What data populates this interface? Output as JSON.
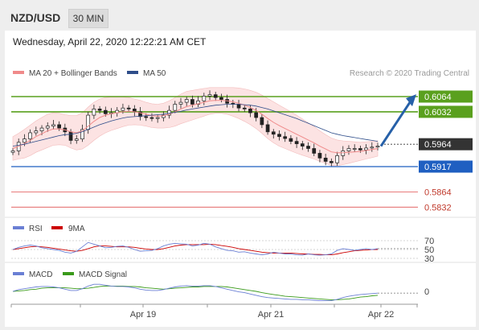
{
  "header": {
    "pair": "NZD/USD",
    "timeframe": "30 MIN",
    "datetime": "Wednesday, April 22, 2020 12:22:21 AM CET"
  },
  "credit": "Research © 2020 Trading Central",
  "legend": {
    "main": [
      {
        "label": "MA 20 + Bollinger Bands",
        "color": "#f08a8a"
      },
      {
        "label": "MA 50",
        "color": "#2e4d8a"
      }
    ],
    "rsi": [
      {
        "label": "RSI",
        "color": "#6a7fd4"
      },
      {
        "label": "9MA",
        "color": "#cc0000"
      }
    ],
    "macd": [
      {
        "label": "MACD",
        "color": "#6a7fd4"
      },
      {
        "label": "MACD Signal",
        "color": "#3a9a1a"
      }
    ]
  },
  "colors": {
    "resistance": "#5aa01e",
    "support": "#1f5fc1",
    "target": "#e05050",
    "price": "#333333",
    "arrow": "#2660a8"
  },
  "chart_data": {
    "type": "line",
    "levels": [
      {
        "value": 0.6064,
        "label": "0.6064",
        "kind": "resistance"
      },
      {
        "value": 0.6032,
        "label": "0.6032",
        "kind": "resistance"
      },
      {
        "value": 0.5964,
        "label": "0.5964",
        "kind": "current"
      },
      {
        "value": 0.5917,
        "label": "0.5917",
        "kind": "support"
      },
      {
        "value": 0.5864,
        "label": "0.5864",
        "kind": "target"
      },
      {
        "value": 0.5832,
        "label": "0.5832",
        "kind": "target"
      }
    ],
    "x_ticks": [
      "Apr 19",
      "Apr 21",
      "Apr 22"
    ],
    "rsi_ticks": [
      "70",
      "50",
      "30"
    ],
    "macd_ticks": [
      "0"
    ],
    "price": [
      0.595,
      0.5968,
      0.5975,
      0.5988,
      0.5992,
      0.5998,
      0.6002,
      0.6005,
      0.5998,
      0.599,
      0.5972,
      0.5975,
      0.5995,
      0.6025,
      0.6038,
      0.6035,
      0.6028,
      0.603,
      0.6035,
      0.604,
      0.6038,
      0.6032,
      0.6022,
      0.602,
      0.6018,
      0.602,
      0.6025,
      0.6035,
      0.6048,
      0.6052,
      0.6058,
      0.6048,
      0.6055,
      0.6065,
      0.6068,
      0.6062,
      0.6058,
      0.605,
      0.6048,
      0.604,
      0.6038,
      0.603,
      0.602,
      0.6005,
      0.599,
      0.5985,
      0.598,
      0.5976,
      0.597,
      0.5965,
      0.596,
      0.5955,
      0.5945,
      0.5935,
      0.5928,
      0.5925,
      0.594,
      0.595,
      0.5955,
      0.5955,
      0.5952,
      0.5956,
      0.5958,
      0.596
    ],
    "ma20": [
      0.5955,
      0.596,
      0.5965,
      0.5972,
      0.598,
      0.5986,
      0.5992,
      0.5996,
      0.5996,
      0.5994,
      0.599,
      0.5988,
      0.5992,
      0.6002,
      0.6012,
      0.602,
      0.6025,
      0.6028,
      0.603,
      0.6032,
      0.6033,
      0.6032,
      0.603,
      0.6027,
      0.6024,
      0.6023,
      0.6024,
      0.6027,
      0.6032,
      0.6038,
      0.6043,
      0.6046,
      0.6049,
      0.6052,
      0.6055,
      0.6056,
      0.6056,
      0.6055,
      0.6053,
      0.605,
      0.6046,
      0.6041,
      0.6035,
      0.6027,
      0.6018,
      0.601,
      0.6003,
      0.5997,
      0.5991,
      0.5985,
      0.5979,
      0.5973,
      0.5967,
      0.596,
      0.5954,
      0.5948,
      0.5946,
      0.5946,
      0.5947,
      0.5948,
      0.5949,
      0.5951,
      0.5953,
      0.5955
    ],
    "ma50": [
      0.596,
      0.5962,
      0.5964,
      0.5967,
      0.597,
      0.5973,
      0.5976,
      0.5979,
      0.5982,
      0.5984,
      0.5985,
      0.5987,
      0.599,
      0.5995,
      0.6,
      0.6005,
      0.6009,
      0.6013,
      0.6016,
      0.6019,
      0.6021,
      0.6022,
      0.6023,
      0.6024,
      0.6025,
      0.6026,
      0.6027,
      0.6029,
      0.6031,
      0.6033,
      0.6036,
      0.6038,
      0.604,
      0.6042,
      0.6044,
      0.6046,
      0.6047,
      0.6048,
      0.6048,
      0.6048,
      0.6047,
      0.6046,
      0.6044,
      0.6041,
      0.6038,
      0.6034,
      0.603,
      0.6026,
      0.6022,
      0.6018,
      0.6013,
      0.6008,
      0.6003,
      0.5998,
      0.5993,
      0.5988,
      0.5985,
      0.5982,
      0.598,
      0.5978,
      0.5976,
      0.5974,
      0.5972,
      0.597
    ],
    "bb_width": [
      0.0025,
      0.0027,
      0.003,
      0.0032,
      0.0033,
      0.0034,
      0.0035,
      0.0034,
      0.0033,
      0.0032,
      0.0034,
      0.0036,
      0.0038,
      0.004,
      0.004,
      0.0039,
      0.0037,
      0.0035,
      0.0033,
      0.0031,
      0.0029,
      0.0027,
      0.0026,
      0.0025,
      0.0025,
      0.0025,
      0.0026,
      0.0028,
      0.003,
      0.0031,
      0.0032,
      0.0031,
      0.003,
      0.0029,
      0.0028,
      0.0027,
      0.0027,
      0.0028,
      0.003,
      0.0032,
      0.0034,
      0.0036,
      0.0038,
      0.004,
      0.0042,
      0.0043,
      0.0043,
      0.0042,
      0.0041,
      0.004,
      0.0038,
      0.0036,
      0.0034,
      0.0032,
      0.003,
      0.0029,
      0.0027,
      0.0025,
      0.0023,
      0.0021,
      0.0019,
      0.0018,
      0.0017,
      0.0016
    ],
    "rsi": [
      50,
      55,
      58,
      60,
      58,
      54,
      52,
      50,
      48,
      44,
      42,
      46,
      56,
      66,
      62,
      58,
      54,
      55,
      57,
      58,
      55,
      50,
      46,
      47,
      48,
      52,
      58,
      62,
      64,
      63,
      62,
      58,
      60,
      64,
      62,
      56,
      52,
      48,
      47,
      44,
      45,
      42,
      40,
      38,
      40,
      44,
      42,
      40,
      40,
      38,
      37,
      40,
      38,
      37,
      38,
      40,
      48,
      52,
      50,
      48,
      50,
      52,
      50,
      52
    ],
    "rsi_ma": [
      50,
      52,
      54,
      56,
      57,
      56,
      55,
      53,
      51,
      49,
      47,
      46,
      48,
      52,
      56,
      58,
      58,
      57,
      56,
      56,
      56,
      55,
      53,
      51,
      50,
      50,
      52,
      55,
      58,
      60,
      61,
      61,
      61,
      61,
      62,
      61,
      59,
      57,
      55,
      52,
      50,
      48,
      46,
      44,
      43,
      42,
      42,
      42,
      42,
      41,
      40,
      40,
      39,
      39,
      38,
      38,
      40,
      43,
      45,
      47,
      48,
      49,
      50,
      50
    ],
    "macd": [
      0.0,
      0.0004,
      0.0006,
      0.0008,
      0.001,
      0.0011,
      0.0011,
      0.001,
      0.0008,
      0.0005,
      0.0002,
      0.0002,
      0.0006,
      0.0012,
      0.0016,
      0.0016,
      0.0014,
      0.0012,
      0.0011,
      0.0011,
      0.001,
      0.0008,
      0.0005,
      0.0003,
      0.0002,
      0.0002,
      0.0004,
      0.0007,
      0.001,
      0.0012,
      0.0013,
      0.0012,
      0.0012,
      0.0013,
      0.0013,
      0.0011,
      0.0008,
      0.0005,
      0.0002,
      -0.0001,
      -0.0003,
      -0.0006,
      -0.0009,
      -0.0012,
      -0.0014,
      -0.0015,
      -0.0016,
      -0.0017,
      -0.0018,
      -0.0018,
      -0.0019,
      -0.0019,
      -0.002,
      -0.0021,
      -0.0021,
      -0.0021,
      -0.0018,
      -0.0014,
      -0.0011,
      -0.0009,
      -0.0007,
      -0.0006,
      -0.0005,
      -0.0004
    ],
    "macd_signal": [
      0.0,
      0.0001,
      0.0002,
      0.0004,
      0.0005,
      0.0007,
      0.0008,
      0.0008,
      0.0008,
      0.0008,
      0.0007,
      0.0006,
      0.0006,
      0.0007,
      0.0009,
      0.0011,
      0.0012,
      0.0012,
      0.0012,
      0.0012,
      0.0011,
      0.0011,
      0.001,
      0.0008,
      0.0007,
      0.0006,
      0.0005,
      0.0006,
      0.0007,
      0.0008,
      0.0009,
      0.001,
      0.001,
      0.0011,
      0.0011,
      0.0011,
      0.0011,
      0.001,
      0.0008,
      0.0006,
      0.0004,
      0.0002,
      0.0,
      -0.0003,
      -0.0005,
      -0.0007,
      -0.0009,
      -0.0011,
      -0.0012,
      -0.0013,
      -0.0014,
      -0.0015,
      -0.0016,
      -0.0017,
      -0.0018,
      -0.0019,
      -0.0019,
      -0.0018,
      -0.0017,
      -0.0015,
      -0.0013,
      -0.0012,
      -0.001,
      -0.0009
    ]
  }
}
